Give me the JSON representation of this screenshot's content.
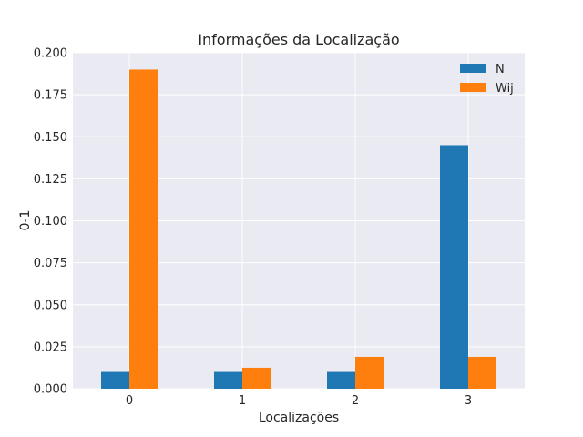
{
  "chart_data": {
    "type": "bar",
    "title": "Informações da Localização",
    "xlabel": "Localizações",
    "ylabel": "0-1",
    "categories": [
      "0",
      "1",
      "2",
      "3"
    ],
    "series": [
      {
        "name": "N",
        "color": "#1f77b4",
        "values": [
          0.01,
          0.01,
          0.01,
          0.145
        ]
      },
      {
        "name": "Wij",
        "color": "#ff7f0e",
        "values": [
          0.19,
          0.0125,
          0.019,
          0.019
        ]
      }
    ],
    "ylim": [
      0,
      0.2
    ],
    "yticks": [
      "0.000",
      "0.025",
      "0.050",
      "0.075",
      "0.100",
      "0.125",
      "0.150",
      "0.175",
      "0.200"
    ],
    "grid": true,
    "legend_position": "top-right",
    "background": "#eaeaf2"
  }
}
